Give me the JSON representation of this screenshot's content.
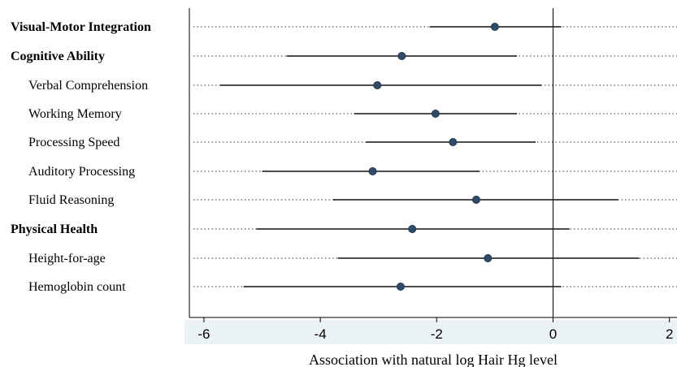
{
  "chart_data": {
    "type": "forest",
    "xlabel": "Association with natural log Hair Hg level",
    "xlim": [
      -6.25,
      2.1
    ],
    "xticks": [
      -6,
      -4,
      -2,
      0,
      2
    ],
    "xtick_labels": [
      "-6",
      "-4",
      "-2",
      "0",
      "2"
    ],
    "reference_line": 0,
    "grid": "dotted horizontal guide per row",
    "colors": {
      "point": "#2f4b68",
      "ci_line": "#111111",
      "axis_band": "#eaf2f3",
      "reference": "#000000"
    },
    "rows": [
      {
        "label": "Visual-Motor Integration",
        "bold": true,
        "indent": 0,
        "estimate": -1.0,
        "ci": [
          -2.12,
          0.14
        ]
      },
      {
        "label": "Cognitive Ability",
        "bold": true,
        "indent": 0,
        "estimate": -2.6,
        "ci": [
          -4.58,
          -0.62
        ]
      },
      {
        "label": "Verbal Comprehension",
        "bold": false,
        "indent": 1,
        "estimate": -3.02,
        "ci": [
          -5.72,
          -0.2
        ]
      },
      {
        "label": "Working Memory",
        "bold": false,
        "indent": 1,
        "estimate": -2.02,
        "ci": [
          -3.42,
          -0.62
        ]
      },
      {
        "label": "Processing Speed",
        "bold": false,
        "indent": 1,
        "estimate": -1.72,
        "ci": [
          -3.22,
          -0.3
        ]
      },
      {
        "label": "Auditory Processing",
        "bold": false,
        "indent": 1,
        "estimate": -3.1,
        "ci": [
          -5.0,
          -1.26
        ]
      },
      {
        "label": "Fluid Reasoning",
        "bold": false,
        "indent": 1,
        "estimate": -1.32,
        "ci": [
          -3.78,
          1.12
        ]
      },
      {
        "label": "Physical Health",
        "bold": true,
        "indent": 0,
        "estimate": -2.42,
        "ci": [
          -5.1,
          0.28
        ]
      },
      {
        "label": "Height-for-age",
        "bold": false,
        "indent": 1,
        "estimate": -1.12,
        "ci": [
          -3.7,
          1.48
        ]
      },
      {
        "label": "Hemoglobin count",
        "bold": false,
        "indent": 1,
        "estimate": -2.62,
        "ci": [
          -5.32,
          0.14
        ]
      }
    ]
  }
}
